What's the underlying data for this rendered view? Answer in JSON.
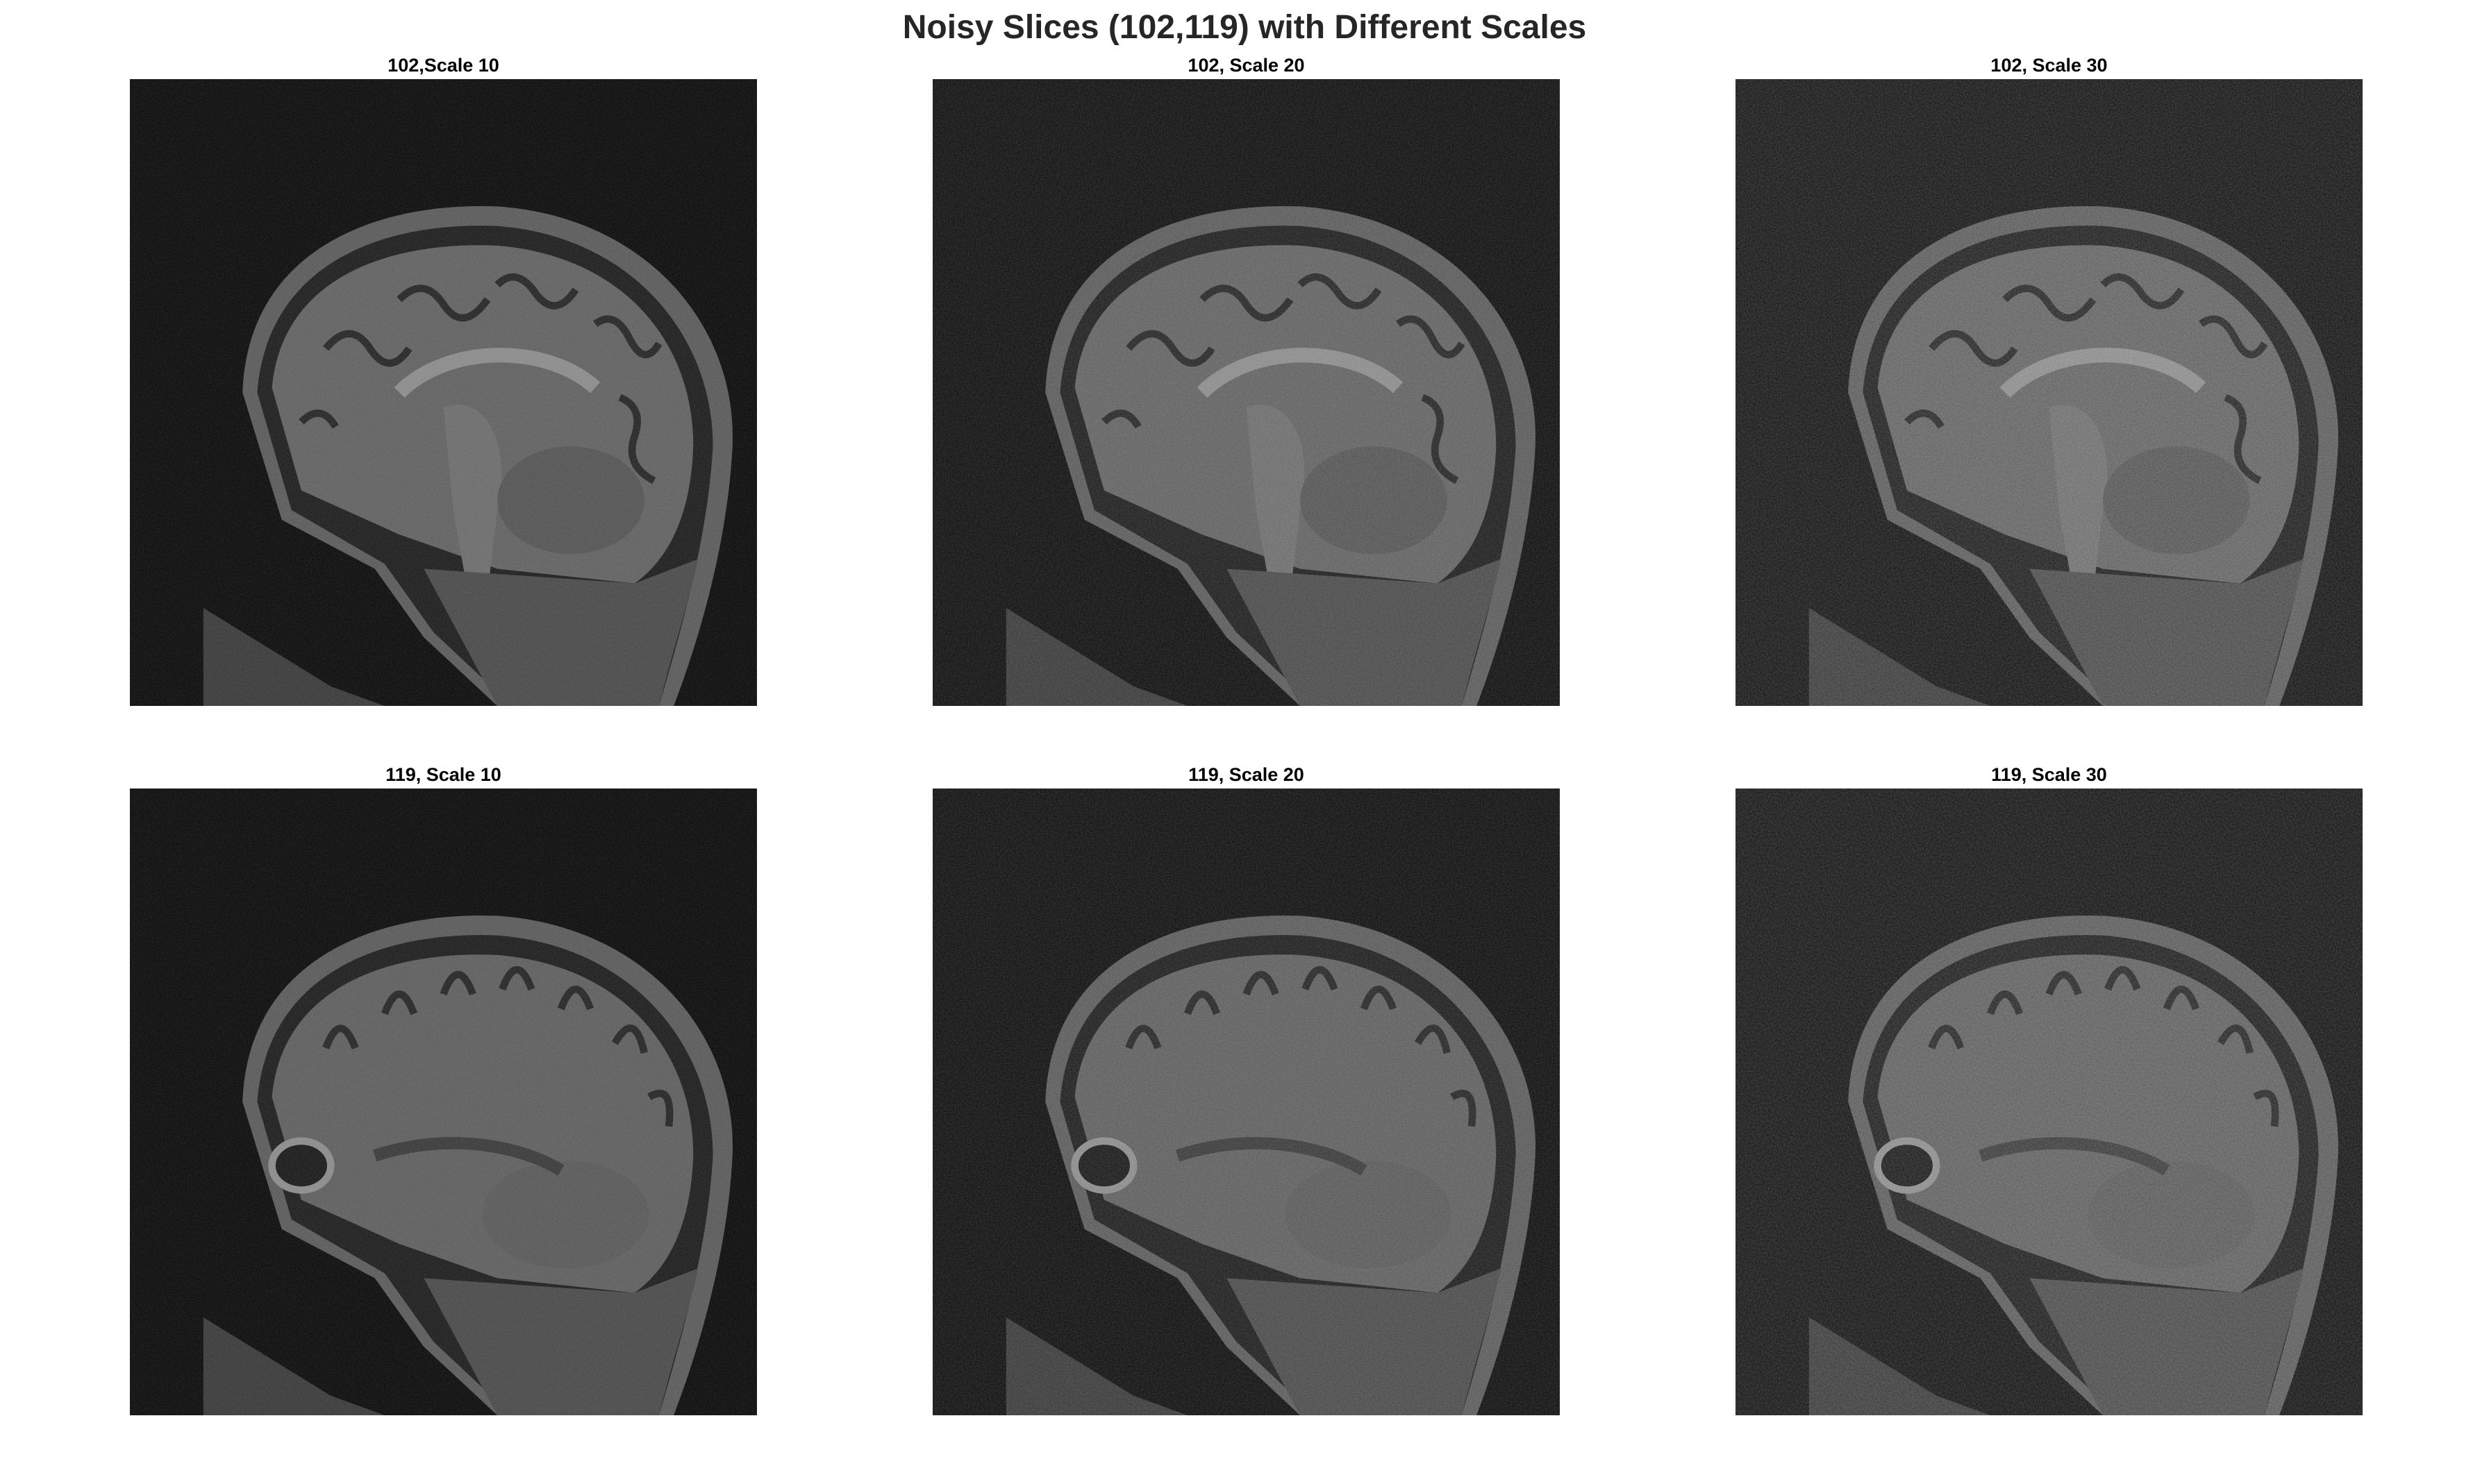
{
  "figure": {
    "title": "Noisy Slices (102,119) with Different Scales"
  },
  "panels": [
    {
      "title": "102,Scale 10",
      "slice": 102,
      "noise_scale": 10
    },
    {
      "title": "102, Scale 20",
      "slice": 102,
      "noise_scale": 20
    },
    {
      "title": "102, Scale 30",
      "slice": 102,
      "noise_scale": 30
    },
    {
      "title": "119, Scale 10",
      "slice": 119,
      "noise_scale": 10
    },
    {
      "title": "119, Scale 20",
      "slice": 119,
      "noise_scale": 20
    },
    {
      "title": "119, Scale 30",
      "slice": 119,
      "noise_scale": 30
    }
  ],
  "colors": {
    "background": "#ffffff",
    "title": "#262626",
    "image_bg": "#0b0b0b"
  }
}
